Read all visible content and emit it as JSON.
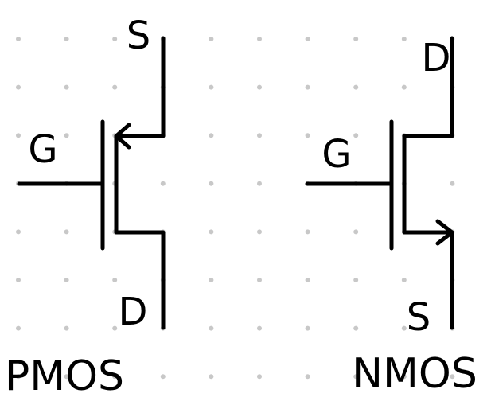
{
  "diagram": {
    "colors": {
      "line": "#000000",
      "grid_dot": "#c8c8c8",
      "background": "#ffffff"
    },
    "pmos": {
      "title": "PMOS",
      "source_label": "S",
      "gate_label": "G",
      "drain_label": "D"
    },
    "nmos": {
      "title": "NMOS",
      "drain_label": "D",
      "gate_label": "G",
      "source_label": "S"
    }
  }
}
